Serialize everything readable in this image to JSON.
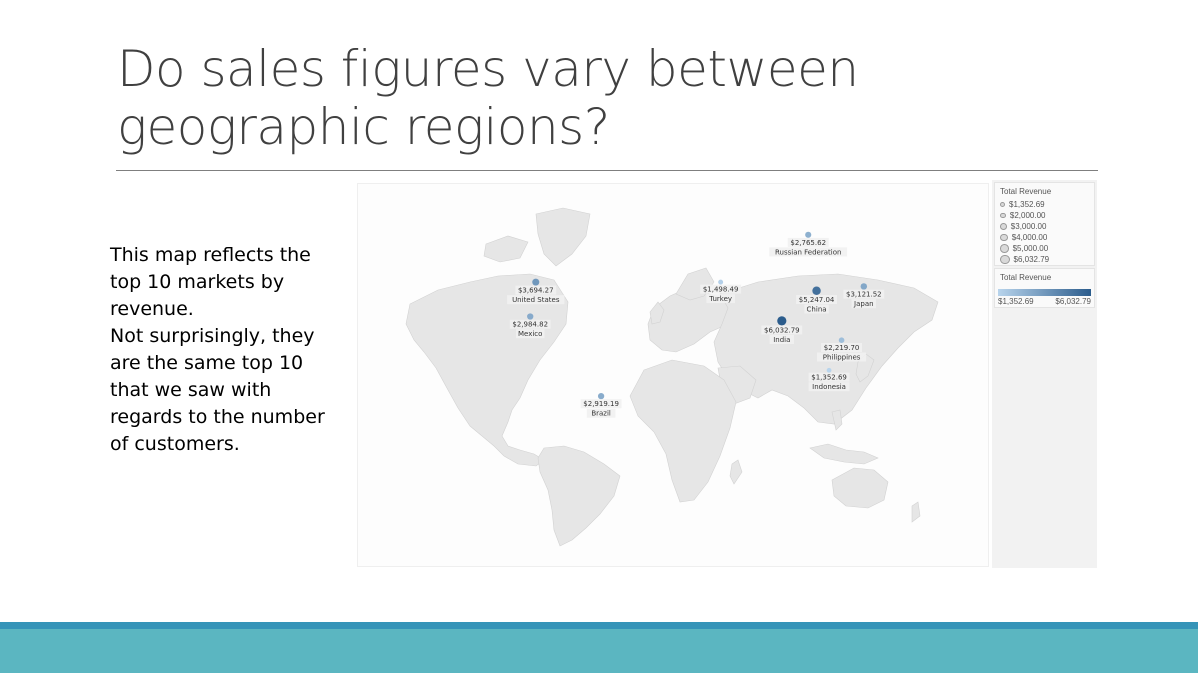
{
  "slide": {
    "title": "Do sales figures vary between geographic regions?",
    "body": [
      "This map reflects the top 10 markets by revenue.",
      "Not surprisingly, they are the same top 10 that we saw with regards to the number of customers."
    ]
  },
  "map": {
    "markets": [
      {
        "country": "United States",
        "revenue": "$3,694.27",
        "value": 3694.27,
        "lon": -98,
        "lat": 39
      },
      {
        "country": "Mexico",
        "revenue": "$2,984.82",
        "value": 2984.82,
        "lon": -102,
        "lat": 23
      },
      {
        "country": "Brazil",
        "revenue": "$2,919.19",
        "value": 2919.19,
        "lon": -51,
        "lat": -14
      },
      {
        "country": "Turkey",
        "revenue": "$1,498.49",
        "value": 1498.49,
        "lon": 35,
        "lat": 39
      },
      {
        "country": "Russian Federation",
        "revenue": "$2,765.62",
        "value": 2765.62,
        "lon": 98,
        "lat": 61
      },
      {
        "country": "China",
        "revenue": "$5,247.04",
        "value": 5247.04,
        "lon": 104,
        "lat": 35
      },
      {
        "country": "India",
        "revenue": "$6,032.79",
        "value": 6032.79,
        "lon": 79,
        "lat": 21
      },
      {
        "country": "Japan",
        "revenue": "$3,121.52",
        "value": 3121.52,
        "lon": 138,
        "lat": 37
      },
      {
        "country": "Philippines",
        "revenue": "$2,219.70",
        "value": 2219.7,
        "lon": 122,
        "lat": 12
      },
      {
        "country": "Indonesia",
        "revenue": "$1,352.69",
        "value": 1352.69,
        "lon": 113,
        "lat": -2
      }
    ],
    "value_min": 1352.69,
    "value_max": 6032.79,
    "color_min": "#b8d4ec",
    "color_max": "#2b5c8c",
    "land_color": "#e6e6e6"
  },
  "legend": {
    "size": {
      "title": "Total Revenue",
      "items": [
        "$1,352.69",
        "$2,000.00",
        "$3,000.00",
        "$4,000.00",
        "$5,000.00",
        "$6,032.79"
      ]
    },
    "color": {
      "title": "Total Revenue",
      "min_label": "$1,352.69",
      "max_label": "$6,032.79"
    }
  }
}
